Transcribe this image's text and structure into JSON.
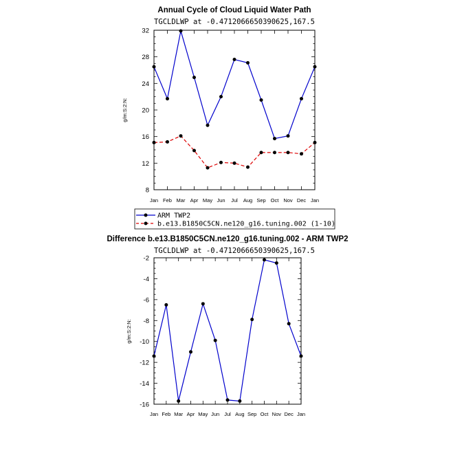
{
  "chart_data": [
    {
      "type": "line",
      "title": "Annual Cycle of Cloud Liquid Water Path",
      "subtitle": "TGCLDLWP  at  -0.4712066650390625,167.5",
      "ylabel": "g/m:S:2:N:",
      "categories": [
        "Jan",
        "Feb",
        "Mar",
        "Apr",
        "May",
        "Jun",
        "Jul",
        "Aug",
        "Sep",
        "Oct",
        "Nov",
        "Dec",
        "Jan"
      ],
      "ylim": [
        8,
        32
      ],
      "yticks": [
        8,
        12,
        16,
        20,
        24,
        28,
        32
      ],
      "legend_position": "bottom",
      "series": [
        {
          "name": "ARM TWP2",
          "color": "#0000cc",
          "dash": "solid",
          "values": [
            26.5,
            21.7,
            31.9,
            24.9,
            17.7,
            22.0,
            27.6,
            27.1,
            21.5,
            15.7,
            16.1,
            21.7,
            26.5
          ]
        },
        {
          "name": "b.e13.B1850C5CN.ne120_g16.tuning.002 (1-10)",
          "color": "#dd0000",
          "dash": "dashed",
          "values": [
            15.1,
            15.2,
            16.1,
            13.9,
            11.3,
            12.1,
            12.0,
            11.4,
            13.6,
            13.6,
            13.6,
            13.4,
            15.1
          ]
        }
      ]
    },
    {
      "type": "line",
      "title": "Difference b.e13.B1850C5CN.ne120_g16.tuning.002 - ARM TWP2",
      "subtitle": "TGCLDLWP  at  -0.4712066650390625,167.5",
      "ylabel": "g/m:S:2:N:",
      "categories": [
        "Jan",
        "Feb",
        "Mar",
        "Apr",
        "May",
        "Jun",
        "Jul",
        "Aug",
        "Sep",
        "Oct",
        "Nov",
        "Dec",
        "Jan"
      ],
      "ylim": [
        -16,
        -2
      ],
      "yticks": [
        -16,
        -14,
        -12,
        -10,
        -8,
        -6,
        -4,
        -2
      ],
      "series": [
        {
          "color": "#0000cc",
          "dash": "solid",
          "values": [
            -11.4,
            -6.5,
            -15.7,
            -11.0,
            -6.4,
            -9.9,
            -15.6,
            -15.7,
            -7.9,
            -2.2,
            -2.5,
            -8.3,
            -11.4
          ]
        }
      ]
    }
  ]
}
